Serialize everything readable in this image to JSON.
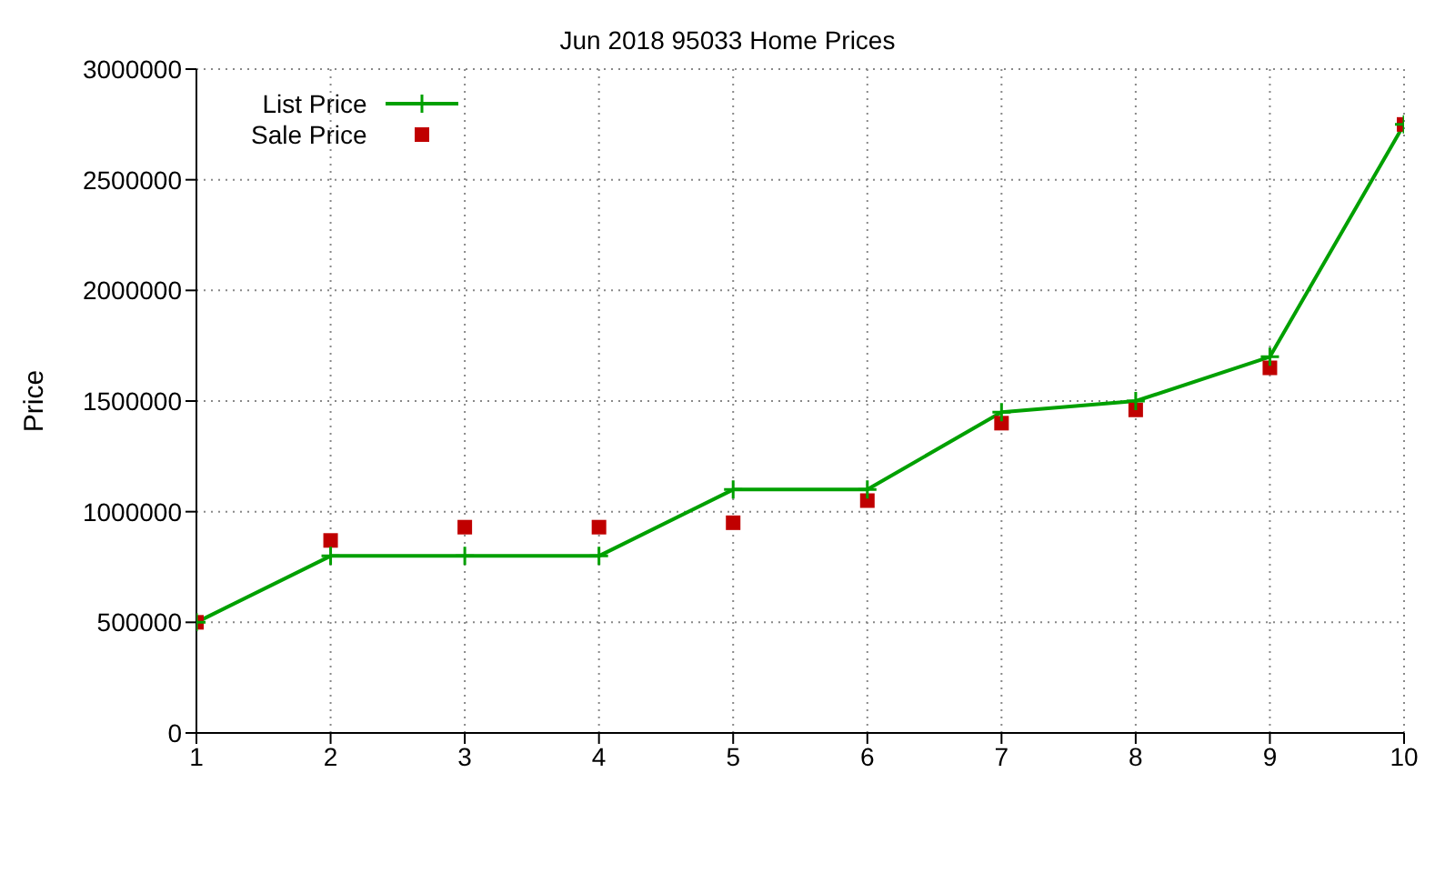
{
  "chart_data": {
    "type": "line",
    "title": "Jun 2018 95033 Home Prices",
    "ylabel": "Price",
    "x": [
      1,
      2,
      3,
      4,
      5,
      6,
      7,
      8,
      9,
      10
    ],
    "xlim": [
      1,
      10
    ],
    "xticks": [
      1,
      2,
      3,
      4,
      5,
      6,
      7,
      8,
      9,
      10
    ],
    "ylim": [
      0,
      3000000
    ],
    "yticks": [
      0,
      500000,
      1000000,
      1500000,
      2000000,
      2500000,
      3000000
    ],
    "grid": true,
    "legend": "top left",
    "series": [
      {
        "name": "List Price",
        "color": "#00a000",
        "marker": "cross",
        "line_style": "solid",
        "values": [
          500000,
          800000,
          800000,
          800000,
          1100000,
          1100000,
          1450000,
          1500000,
          1700000,
          2750000
        ]
      },
      {
        "name": "Sale Price",
        "type": "scatter",
        "color": "#c00000",
        "marker": "square",
        "values": [
          500000,
          870000,
          930000,
          930000,
          950000,
          1050000,
          1400000,
          1460000,
          1650000,
          2750000
        ]
      }
    ]
  }
}
